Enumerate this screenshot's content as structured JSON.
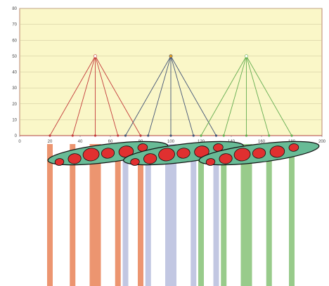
{
  "chart_data": {
    "type": "line",
    "title": "",
    "xlabel": "",
    "ylabel": "",
    "xlim": [
      0,
      200
    ],
    "ylim": [
      0,
      80
    ],
    "x_ticks": [
      0,
      20,
      40,
      60,
      80,
      100,
      120,
      140,
      160,
      180,
      200
    ],
    "y_ticks": [
      0,
      10,
      20,
      30,
      40,
      50,
      60,
      70,
      80
    ],
    "grid": true,
    "plot_background": "#faf7c8",
    "plot_border_color": "#b9866f",
    "series": [
      {
        "color": "#c43c3c",
        "apex": [
          50,
          50
        ],
        "base_x": [
          20,
          35,
          50,
          65,
          80
        ]
      },
      {
        "color": "#445577",
        "apex": [
          100,
          50
        ],
        "base_x": [
          70,
          85,
          100,
          115,
          130
        ]
      },
      {
        "color": "#64ad50",
        "apex": [
          150,
          50
        ],
        "base_x": [
          120,
          135,
          150,
          165,
          180
        ]
      }
    ],
    "illustration": {
      "bar_groups": [
        {
          "color": "#ec9570",
          "base_x": [
            20,
            35,
            50,
            65,
            80
          ]
        },
        {
          "color": "#c2c7e2",
          "base_x": [
            70,
            85,
            100,
            115,
            130
          ]
        },
        {
          "color": "#98cb8b",
          "base_x": [
            120,
            135,
            150,
            165,
            180
          ]
        }
      ],
      "ellipse_color": "#68bb96",
      "ellipse_stroke": "#111111",
      "dot_color": "#e03030",
      "dots_per_ellipse": 6
    }
  }
}
